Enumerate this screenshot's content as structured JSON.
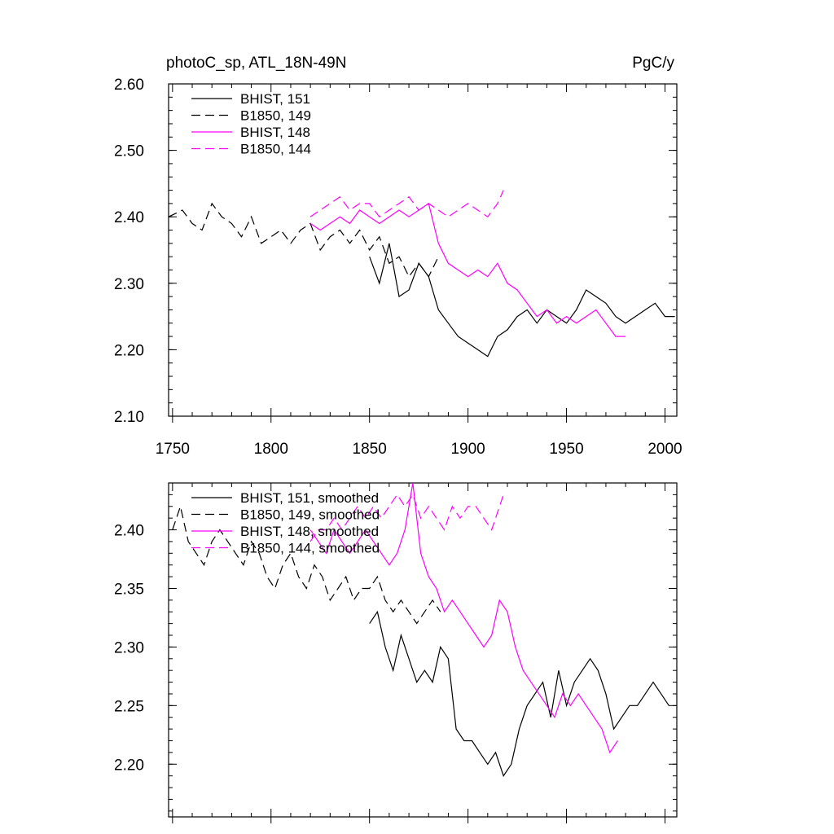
{
  "chart_data": [
    {
      "type": "line",
      "title": "photoC_sp, ATL_18N-49N",
      "units": "PgC/y",
      "xlim": [
        1748,
        2006
      ],
      "ylim": [
        2.1,
        2.6
      ],
      "xticks": [
        1750,
        1800,
        1850,
        1900,
        1950,
        2000
      ],
      "xticklabels": [
        "1750",
        "1800",
        "1850",
        "1900",
        "1950",
        "2000"
      ],
      "yticks": [
        2.1,
        2.2,
        2.3,
        2.4,
        2.5,
        2.6
      ],
      "yticklabels": [
        "2.10",
        "2.20",
        "2.30",
        "2.40",
        "2.50",
        "2.60"
      ],
      "legend_position": "top-left",
      "series": [
        {
          "name": "BHIST, 151",
          "color": "#000000",
          "dash": "solid",
          "x": [
            1850,
            1855,
            1860,
            1865,
            1870,
            1875,
            1880,
            1885,
            1890,
            1895,
            1900,
            1905,
            1910,
            1915,
            1920,
            1925,
            1930,
            1935,
            1940,
            1945,
            1950,
            1955,
            1960,
            1965,
            1970,
            1975,
            1980,
            1985,
            1990,
            1995,
            2000,
            2005
          ],
          "y": [
            2.34,
            2.3,
            2.36,
            2.28,
            2.29,
            2.33,
            2.31,
            2.26,
            2.24,
            2.22,
            2.21,
            2.2,
            2.19,
            2.22,
            2.23,
            2.25,
            2.26,
            2.24,
            2.26,
            2.25,
            2.24,
            2.26,
            2.29,
            2.28,
            2.27,
            2.25,
            2.24,
            2.25,
            2.26,
            2.27,
            2.25,
            2.25
          ]
        },
        {
          "name": "B1850, 149",
          "color": "#000000",
          "dash": "dashed",
          "x": [
            1748,
            1755,
            1760,
            1765,
            1770,
            1775,
            1780,
            1785,
            1790,
            1795,
            1800,
            1805,
            1810,
            1815,
            1820,
            1825,
            1830,
            1835,
            1840,
            1845,
            1850,
            1855,
            1860,
            1865,
            1870,
            1875,
            1880,
            1885
          ],
          "y": [
            2.4,
            2.41,
            2.39,
            2.38,
            2.42,
            2.4,
            2.39,
            2.37,
            2.4,
            2.36,
            2.37,
            2.38,
            2.36,
            2.38,
            2.39,
            2.35,
            2.37,
            2.38,
            2.36,
            2.38,
            2.35,
            2.37,
            2.33,
            2.34,
            2.31,
            2.33,
            2.31,
            2.34
          ]
        },
        {
          "name": "BHIST, 148",
          "color": "#ff00ff",
          "dash": "solid",
          "x": [
            1820,
            1825,
            1830,
            1835,
            1840,
            1845,
            1850,
            1855,
            1860,
            1865,
            1870,
            1875,
            1880,
            1885,
            1890,
            1895,
            1900,
            1905,
            1910,
            1915,
            1920,
            1925,
            1930,
            1935,
            1940,
            1945,
            1950,
            1955,
            1960,
            1965,
            1970,
            1975,
            1980
          ],
          "y": [
            2.39,
            2.38,
            2.39,
            2.4,
            2.39,
            2.41,
            2.4,
            2.39,
            2.4,
            2.41,
            2.4,
            2.41,
            2.42,
            2.36,
            2.33,
            2.32,
            2.31,
            2.32,
            2.31,
            2.33,
            2.3,
            2.29,
            2.27,
            2.25,
            2.26,
            2.24,
            2.25,
            2.24,
            2.25,
            2.26,
            2.24,
            2.22,
            2.22
          ]
        },
        {
          "name": "B1850, 144",
          "color": "#ff00ff",
          "dash": "dashed",
          "x": [
            1820,
            1825,
            1830,
            1835,
            1840,
            1845,
            1850,
            1855,
            1860,
            1865,
            1870,
            1875,
            1880,
            1885,
            1890,
            1895,
            1900,
            1905,
            1910,
            1915,
            1918
          ],
          "y": [
            2.4,
            2.41,
            2.42,
            2.43,
            2.41,
            2.42,
            2.42,
            2.4,
            2.41,
            2.42,
            2.43,
            2.41,
            2.42,
            2.41,
            2.4,
            2.41,
            2.42,
            2.41,
            2.4,
            2.42,
            2.44
          ]
        }
      ]
    },
    {
      "type": "line",
      "title": "",
      "xlim": [
        1748,
        2006
      ],
      "ylim": [
        2.155,
        2.44
      ],
      "yticks": [
        2.2,
        2.25,
        2.3,
        2.35,
        2.4
      ],
      "yticklabels": [
        "2.20",
        "2.25",
        "2.30",
        "2.35",
        "2.40"
      ],
      "legend_position": "top-left",
      "series": [
        {
          "name": "BHIST, 151, smoothed",
          "color": "#000000",
          "dash": "solid",
          "x": [
            1850,
            1854,
            1858,
            1862,
            1866,
            1870,
            1874,
            1878,
            1882,
            1886,
            1890,
            1894,
            1898,
            1902,
            1906,
            1910,
            1914,
            1918,
            1922,
            1926,
            1930,
            1934,
            1938,
            1942,
            1946,
            1950,
            1954,
            1958,
            1962,
            1966,
            1970,
            1974,
            1978,
            1982,
            1986,
            1990,
            1994,
            1998,
            2002
          ],
          "y": [
            2.32,
            2.33,
            2.3,
            2.28,
            2.31,
            2.29,
            2.27,
            2.28,
            2.27,
            2.3,
            2.29,
            2.23,
            2.22,
            2.22,
            2.21,
            2.2,
            2.21,
            2.19,
            2.2,
            2.23,
            2.25,
            2.26,
            2.27,
            2.24,
            2.28,
            2.25,
            2.27,
            2.28,
            2.29,
            2.28,
            2.26,
            2.23,
            2.24,
            2.25,
            2.25,
            2.26,
            2.27,
            2.26,
            2.25
          ]
        },
        {
          "name": "B1850, 149, smoothed",
          "color": "#000000",
          "dash": "dashed",
          "x": [
            1750,
            1754,
            1758,
            1762,
            1766,
            1770,
            1774,
            1778,
            1782,
            1786,
            1790,
            1794,
            1798,
            1802,
            1806,
            1810,
            1814,
            1818,
            1822,
            1826,
            1830,
            1834,
            1838,
            1842,
            1846,
            1850,
            1854,
            1858,
            1862,
            1866,
            1870,
            1874,
            1878,
            1882,
            1886
          ],
          "y": [
            2.4,
            2.42,
            2.39,
            2.38,
            2.37,
            2.39,
            2.4,
            2.39,
            2.38,
            2.37,
            2.39,
            2.38,
            2.36,
            2.35,
            2.37,
            2.38,
            2.36,
            2.35,
            2.37,
            2.36,
            2.34,
            2.35,
            2.36,
            2.34,
            2.35,
            2.35,
            2.36,
            2.34,
            2.33,
            2.34,
            2.33,
            2.32,
            2.33,
            2.34,
            2.33
          ]
        },
        {
          "name": "BHIST, 148, smoothed",
          "color": "#ff00ff",
          "dash": "solid",
          "x": [
            1820,
            1824,
            1828,
            1832,
            1836,
            1840,
            1844,
            1848,
            1852,
            1856,
            1860,
            1864,
            1868,
            1872,
            1876,
            1880,
            1884,
            1888,
            1892,
            1896,
            1900,
            1904,
            1908,
            1912,
            1916,
            1920,
            1924,
            1928,
            1932,
            1936,
            1940,
            1944,
            1948,
            1952,
            1956,
            1960,
            1964,
            1968,
            1972,
            1976
          ],
          "y": [
            2.4,
            2.39,
            2.38,
            2.4,
            2.39,
            2.38,
            2.39,
            2.4,
            2.39,
            2.38,
            2.37,
            2.38,
            2.4,
            2.44,
            2.38,
            2.36,
            2.35,
            2.33,
            2.34,
            2.33,
            2.32,
            2.31,
            2.3,
            2.31,
            2.34,
            2.33,
            2.3,
            2.28,
            2.27,
            2.26,
            2.25,
            2.24,
            2.26,
            2.25,
            2.26,
            2.25,
            2.24,
            2.23,
            2.21,
            2.22
          ]
        },
        {
          "name": "B1850, 144, smoothed",
          "color": "#ff00ff",
          "dash": "dashed",
          "x": [
            1820,
            1824,
            1828,
            1832,
            1836,
            1840,
            1844,
            1848,
            1852,
            1856,
            1860,
            1864,
            1868,
            1872,
            1876,
            1880,
            1884,
            1888,
            1892,
            1896,
            1900,
            1904,
            1908,
            1912,
            1916,
            1918
          ],
          "y": [
            2.39,
            2.4,
            2.4,
            2.41,
            2.4,
            2.41,
            2.42,
            2.41,
            2.42,
            2.41,
            2.42,
            2.43,
            2.42,
            2.43,
            2.41,
            2.42,
            2.41,
            2.4,
            2.42,
            2.41,
            2.42,
            2.42,
            2.41,
            2.4,
            2.42,
            2.43
          ]
        }
      ]
    }
  ]
}
